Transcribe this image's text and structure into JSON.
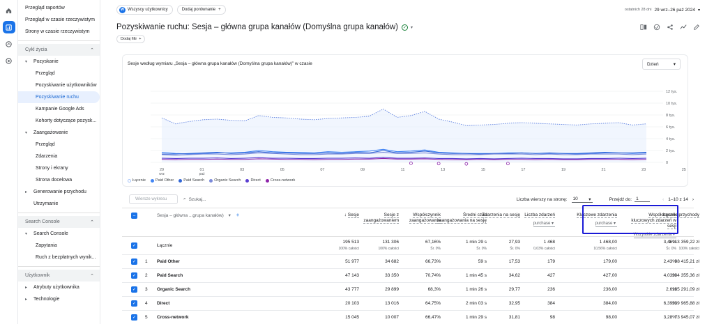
{
  "sidebar": {
    "top_items": [
      "Przegląd raportów",
      "Przegląd w czasie rzeczywistym",
      "Strony w czasie rzeczywistym"
    ],
    "section_lifecycle": "Cykl życia",
    "lifecycle": [
      {
        "label": "Pozyskanie",
        "type": "group"
      },
      {
        "label": "Przegląd",
        "type": "sub"
      },
      {
        "label": "Pozyskiwanie użytkowników",
        "type": "sub"
      },
      {
        "label": "Pozyskiwanie ruchu",
        "type": "sub-active"
      },
      {
        "label": "Kampanie Google Ads",
        "type": "sub"
      },
      {
        "label": "Kohorty dotyczące pozysk...",
        "type": "sub"
      },
      {
        "label": "Zaangażowanie",
        "type": "group"
      },
      {
        "label": "Przegląd",
        "type": "sub"
      },
      {
        "label": "Zdarzenia",
        "type": "sub"
      },
      {
        "label": "Strony i ekrany",
        "type": "sub"
      },
      {
        "label": "Strona docelowa",
        "type": "sub"
      },
      {
        "label": "Generowanie przychodu",
        "type": "group-collapsed"
      },
      {
        "label": "Utrzymanie",
        "type": "plain"
      }
    ],
    "section_search_console": "Search Console",
    "search_console": [
      {
        "label": "Search Console",
        "type": "group"
      },
      {
        "label": "Zapytania",
        "type": "sub"
      },
      {
        "label": "Ruch z bezpłatnych wynik...",
        "type": "sub"
      }
    ],
    "section_user": "Użytkownik",
    "user": [
      {
        "label": "Atrybuty użytkownika",
        "type": "group-collapsed"
      },
      {
        "label": "Technologie",
        "type": "group-collapsed"
      }
    ]
  },
  "topbar": {
    "segment_avatar": "W",
    "segment_label": "Wszyscy użytkownicy",
    "add_comparison": "Dodaj porównanie",
    "date_prefix": "ostatnich 28 dni",
    "date_range": "29 wrz–26 paź 2024"
  },
  "title": {
    "text": "Pozyskiwanie ruchu: Sesja – główna grupa kanałów (Domyślna grupa kanałów)",
    "add_filter": "Dodaj filtr"
  },
  "chart": {
    "title": "Sesje według wymiaru „Sesja – główna grupa kanałów (Domyślna grupa kanałów)” w czasie",
    "granularity": "Dzień",
    "legend": [
      {
        "name": "Łącznie",
        "color": "#a8c7fa"
      },
      {
        "name": "Paid Other",
        "color": "#4285f4"
      },
      {
        "name": "Paid Search",
        "color": "#3367d6"
      },
      {
        "name": "Organic Search",
        "color": "#7b8ad9"
      },
      {
        "name": "Direct",
        "color": "#5b3fd1"
      },
      {
        "name": "Cross-network",
        "color": "#8e24aa"
      }
    ]
  },
  "chart_data": {
    "type": "line",
    "title": "Sesje według wymiaru „Sesja – główna grupa kanałów (Domyślna grupa kanałów)” w czasie",
    "x_ticks": [
      "29 wrz",
      "01 paź",
      "03",
      "05",
      "07",
      "09",
      "11",
      "13",
      "15",
      "17",
      "19",
      "21",
      "23",
      "25"
    ],
    "y_ticks": [
      "0",
      "2 tys.",
      "4 tys.",
      "6 tys.",
      "8 tys.",
      "10 tys.",
      "12 tys."
    ],
    "ylim": [
      0,
      12000
    ],
    "series": [
      {
        "name": "Łącznie",
        "values": [
          7500,
          6500,
          6900,
          7200,
          7300,
          7100,
          7000,
          7900,
          7600,
          7500,
          7300,
          7200,
          7400,
          7500,
          7600,
          7800,
          9000,
          7600,
          7900,
          8600,
          7300,
          6800,
          6200,
          6300,
          6400,
          6600,
          6700,
          6600,
          6500,
          6400,
          6300,
          6500,
          6600,
          6700,
          6300,
          6500
        ]
      },
      {
        "name": "Paid Other",
        "values": [
          1700,
          1500,
          1400,
          1500,
          1600,
          1600,
          1700,
          2000,
          1800,
          1700,
          1700,
          1600,
          1800,
          1700,
          1800,
          1900,
          2200,
          1800,
          1900,
          2100,
          1700,
          1600,
          1500,
          1500,
          1500,
          1600,
          1600,
          1500,
          1500,
          1500,
          1400,
          1500,
          1600,
          1600,
          1500,
          1600
        ]
      },
      {
        "name": "Paid Search",
        "values": [
          1400,
          1400,
          1500,
          1600,
          1700,
          1500,
          1600,
          1800,
          1600,
          1600,
          1500,
          1500,
          1600,
          1500,
          1700,
          1600,
          2000,
          1600,
          1700,
          1900,
          1600,
          1500,
          1500,
          1400,
          1500,
          1500,
          1600,
          1500,
          1600,
          1500,
          1500,
          1600,
          1700,
          1600,
          1600,
          1700
        ]
      },
      {
        "name": "Organic Search",
        "values": [
          1300,
          1200,
          1300,
          1400,
          1400,
          1300,
          1400,
          1600,
          1500,
          1400,
          1300,
          1300,
          1400,
          1400,
          1500,
          1500,
          1700,
          1500,
          1500,
          1600,
          1400,
          1300,
          1300,
          1300,
          1400,
          1400,
          1400,
          1300,
          1400,
          1300,
          1300,
          1400,
          1400,
          1400,
          1300,
          1400
        ]
      },
      {
        "name": "Direct",
        "values": [
          700,
          650,
          700,
          700,
          750,
          650,
          700,
          800,
          700,
          700,
          650,
          650,
          700,
          700,
          750,
          700,
          850,
          700,
          700,
          750,
          650,
          650,
          600,
          650,
          600,
          650,
          700,
          650,
          650,
          600,
          600,
          650,
          650,
          700,
          650,
          700
        ]
      },
      {
        "name": "Cross-network",
        "values": [
          500,
          450,
          500,
          500,
          550,
          500,
          500,
          600,
          550,
          500,
          500,
          450,
          500,
          500,
          550,
          550,
          650,
          550,
          550,
          600,
          500,
          450,
          450,
          500,
          450,
          500,
          500,
          450,
          500,
          450,
          450,
          500,
          500,
          500,
          450,
          500
        ]
      }
    ]
  },
  "table_controls": {
    "search_placeholder": "Wiersze wykresu",
    "search_label": "Szukaj...",
    "rows_per_page_label": "Liczba wierszy na stronę:",
    "rows_per_page": "10",
    "goto_label": "Przejdź do:",
    "goto_value": "1",
    "pagination": "1–10 z 14"
  },
  "table": {
    "dimension_header": "Sesja – główna ...grupa kanałów)",
    "headers": [
      {
        "label": "Sesje",
        "sorted": true
      },
      {
        "label": "Sesje z zaangażowaniem"
      },
      {
        "label": "Współczynnik zaangażowania"
      },
      {
        "label": "Średni czas zaangażowania na sesję"
      },
      {
        "label": "Zdarzenia na sesję"
      },
      {
        "label": "Liczba zdarzeń",
        "selector": "purchase"
      },
      {
        "label": "Kluczowe zdarzenia",
        "selector": "purchase"
      },
      {
        "label": "Współczynnik kluczowych zdarzeń w sesji",
        "selector": "Wszystkie zdarzenia"
      },
      {
        "label": "Łączne przychody"
      }
    ],
    "total": {
      "label": "Łącznie",
      "values": [
        "195 513",
        "131 306",
        "67,16%",
        "1 min 29 s",
        "27,93",
        "1 468",
        "1 468,00",
        "3,46%",
        "1 113 359,22 zł"
      ],
      "subs": [
        "100% całości",
        "100% całości",
        "Śr. 0%",
        "Śr. 0%",
        "Śr. 0%",
        "0,03% całości",
        "10,56% całości",
        "Śr. 0%",
        "100% całości"
      ]
    },
    "rows": [
      {
        "num": "1",
        "name": "Paid Other",
        "values": [
          "51 977",
          "34 682",
          "66,73%",
          "59 s",
          "17,53",
          "179",
          "179,00",
          "2,43%",
          "98 415,21 zł"
        ]
      },
      {
        "num": "2",
        "name": "Paid Search",
        "values": [
          "47 143",
          "33 350",
          "70,74%",
          "1 min 45 s",
          "34,62",
          "427",
          "427,00",
          "4,03%",
          "304 355,36 zł"
        ]
      },
      {
        "num": "3",
        "name": "Organic Search",
        "values": [
          "43 777",
          "29 899",
          "68,3%",
          "1 min 26 s",
          "29,77",
          "236",
          "236,00",
          "2,6%",
          "185 291,09 zł"
        ]
      },
      {
        "num": "4",
        "name": "Direct",
        "values": [
          "20 103",
          "13 016",
          "64,75%",
          "2 min 03 s",
          "32,95",
          "384",
          "384,00",
          "6,39%",
          "339 965,88 zł"
        ]
      },
      {
        "num": "5",
        "name": "Cross-network",
        "values": [
          "15 045",
          "10 007",
          "66,47%",
          "1 min 29 s",
          "31,81",
          "98",
          "98,00",
          "3,28%",
          "73 945,07 zł"
        ]
      }
    ]
  }
}
